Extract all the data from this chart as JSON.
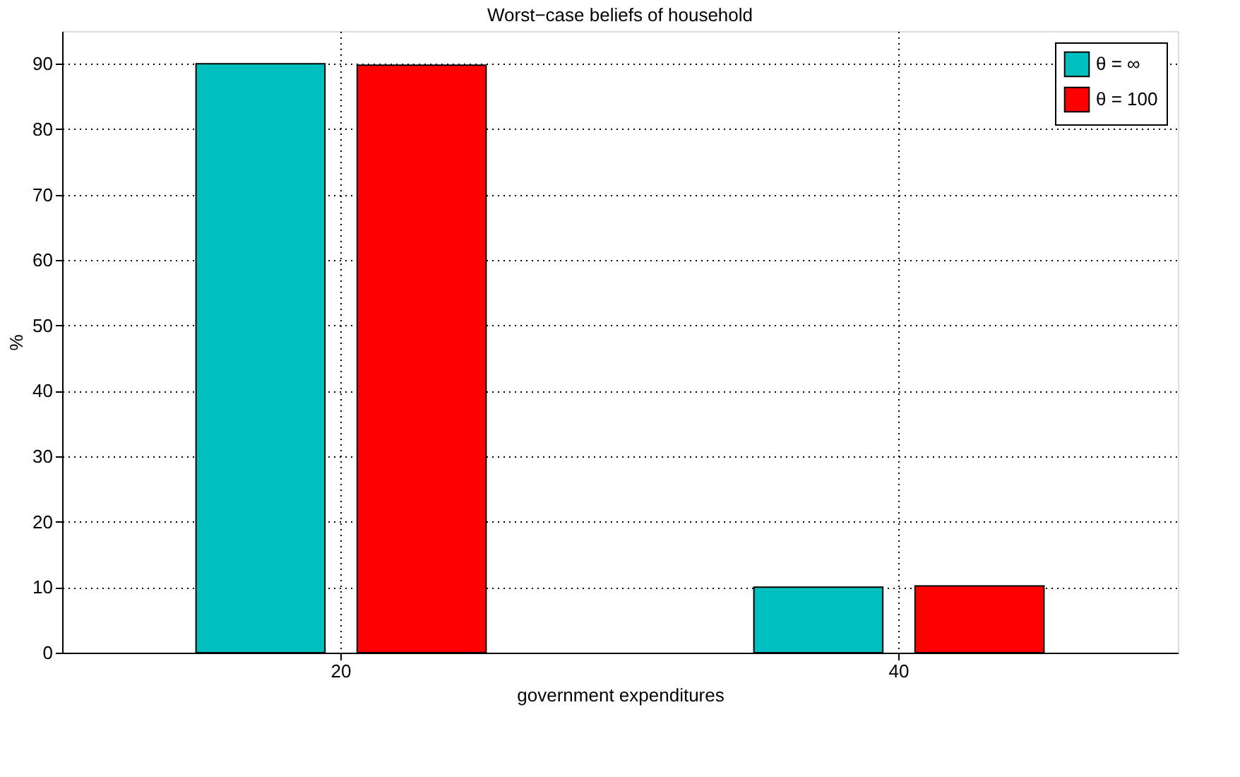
{
  "chart_data": {
    "type": "bar",
    "title": "Worst−case beliefs of household",
    "xlabel": "government expenditures",
    "ylabel": "%",
    "categories": [
      "20",
      "40"
    ],
    "series": [
      {
        "name": "θ = ∞",
        "color": "#00bfbf",
        "values": [
          90,
          10
        ]
      },
      {
        "name": "θ = 100",
        "color": "#ff0000",
        "values": [
          89.8,
          10.2
        ]
      }
    ],
    "ylim": [
      0,
      95
    ],
    "yticks": [
      0,
      10,
      20,
      30,
      40,
      50,
      60,
      70,
      80,
      90
    ],
    "grid": true,
    "legend": "top right"
  }
}
